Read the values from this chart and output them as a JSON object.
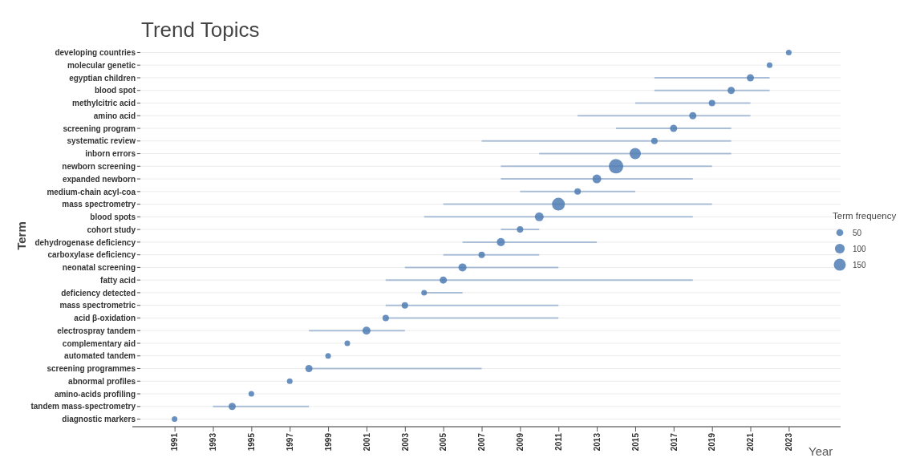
{
  "chart_data": {
    "type": "bubble",
    "orientation": "horizontal",
    "title": "Trend Topics",
    "xlabel": "Year",
    "ylabel": "Term",
    "legend_title": "Term frequency",
    "grid": "y",
    "marker": "circle",
    "categories": [
      "developing countries",
      "molecular genetic",
      "egyptian children",
      "blood spot",
      "methylcitric acid",
      "amino acid",
      "screening program",
      "systematic review",
      "inborn errors",
      "newborn screening",
      "expanded newborn",
      "medium-chain acyl-coa",
      "mass spectrometry",
      "blood spots",
      "cohort study",
      "dehydrogenase deficiency",
      "carboxylase deficiency",
      "neonatal screening",
      "fatty acid",
      "deficiency detected",
      "mass spectrometric",
      "acid β-oxidation",
      "electrospray tandem",
      "complementary aid",
      "automated tandem",
      "screening programmes",
      "abnormal profiles",
      "amino-acids profiling",
      "tandem mass-spectrometry",
      "diagnostic markers"
    ],
    "xlim": [
      1988.8,
      2025.7
    ],
    "xticks": [
      1991,
      1993,
      1995,
      1997,
      1999,
      2001,
      2003,
      2005,
      2007,
      2009,
      2011,
      2013,
      2015,
      2017,
      2019,
      2021,
      2023
    ],
    "size_legend": [
      50,
      100,
      150
    ],
    "series": [
      {
        "color": "#4f7db3",
        "values": [
          2023,
          2022,
          2021,
          2020,
          2019,
          2018,
          2017,
          2016,
          2015,
          2014,
          2013,
          2012,
          2011,
          2010,
          2009,
          2008,
          2007,
          2006,
          2005,
          2004,
          2003,
          2002,
          2001,
          2000,
          1999,
          1998,
          1997,
          1995,
          1994,
          1991
        ],
        "errors": [
          null,
          null,
          [
            2016,
            2022
          ],
          [
            2016,
            2022
          ],
          [
            2015,
            2021
          ],
          [
            2012,
            2021
          ],
          [
            2014,
            2020
          ],
          [
            2007,
            2020
          ],
          [
            2010,
            2020
          ],
          [
            2008,
            2019
          ],
          [
            2008,
            2018
          ],
          [
            2009,
            2015
          ],
          [
            2005,
            2019
          ],
          [
            2004,
            2018
          ],
          [
            2008,
            2010
          ],
          [
            2006,
            2013
          ],
          [
            2005,
            2010
          ],
          [
            2003,
            2011
          ],
          [
            2002,
            2018
          ],
          [
            2004,
            2006
          ],
          [
            2002,
            2011
          ],
          [
            2002,
            2011
          ],
          [
            1998,
            2003
          ],
          null,
          null,
          [
            1998,
            2007
          ],
          null,
          null,
          [
            1993,
            1998
          ],
          null
        ],
        "sizes": [
          33,
          33,
          54,
          54,
          43,
          54,
          54,
          43,
          131,
          216,
          81,
          43,
          171,
          81,
          43,
          67,
          43,
          67,
          54,
          33,
          43,
          43,
          67,
          33,
          33,
          54,
          33,
          33,
          54,
          33
        ]
      }
    ]
  }
}
